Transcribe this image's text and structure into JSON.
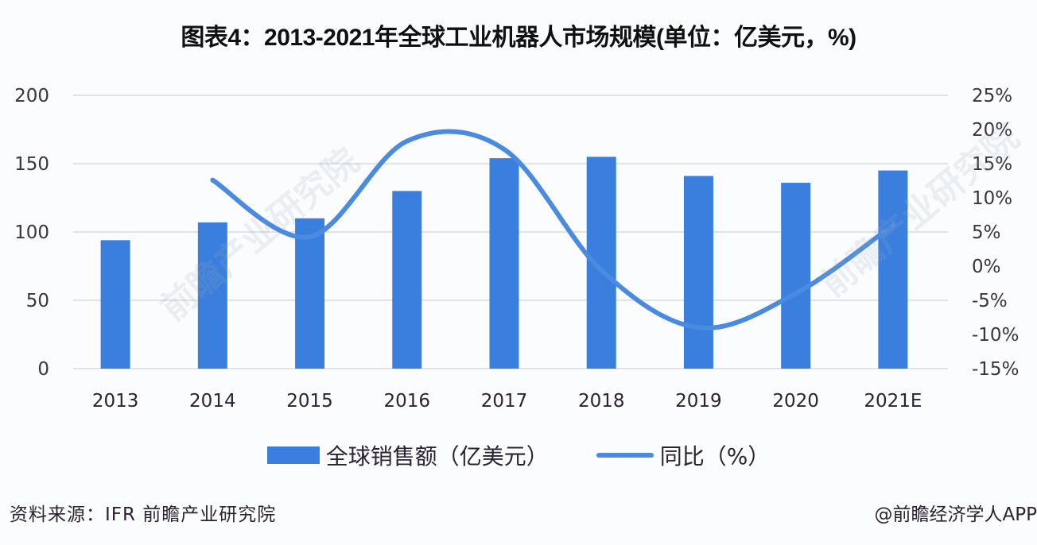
{
  "title": "图表4：2013-2021年全球工业机器人市场规模(单位：亿美元，%)",
  "colors": {
    "bar": "#3a7fde",
    "line": "#4a8ae0",
    "grid": "#d6d9de",
    "background": "#fbfcfe"
  },
  "legend": {
    "bar_label": "全球销售额（亿美元）",
    "line_label": "同比（%）"
  },
  "footer": {
    "source": "资料来源：IFR 前瞻产业研究院",
    "credit": "@前瞻经济学人APP"
  },
  "watermark": {
    "text1": "前瞻产业研究院",
    "text2": "前瞻产业研究院"
  },
  "chart_data": {
    "type": "bar",
    "title": "图表4：2013-2021年全球工业机器人市场规模(单位：亿美元，%)",
    "categories": [
      "2013",
      "2014",
      "2015",
      "2016",
      "2017",
      "2018",
      "2019",
      "2020",
      "2021E"
    ],
    "series": [
      {
        "name": "全球销售额（亿美元）",
        "type": "bar",
        "axis": "left",
        "values": [
          94,
          107,
          110,
          130,
          154,
          155,
          141,
          136,
          145
        ]
      },
      {
        "name": "同比（%）",
        "type": "line",
        "smooth": true,
        "axis": "right",
        "values": [
          null,
          12.6,
          4.3,
          18.3,
          17.1,
          -0.6,
          -9.0,
          -4.0,
          6.0
        ]
      }
    ],
    "left_axis": {
      "ylim": [
        0,
        200
      ],
      "ticks": [
        "0",
        "50",
        "100",
        "150",
        "200"
      ]
    },
    "right_axis": {
      "ylim": [
        -15,
        25
      ],
      "ticks": [
        "-15%",
        "-10%",
        "-5%",
        "0%",
        "5%",
        "10%",
        "15%",
        "20%",
        "25%"
      ]
    },
    "xlabel": "",
    "ylabel": "",
    "grid": true,
    "legend_position": "bottom"
  }
}
